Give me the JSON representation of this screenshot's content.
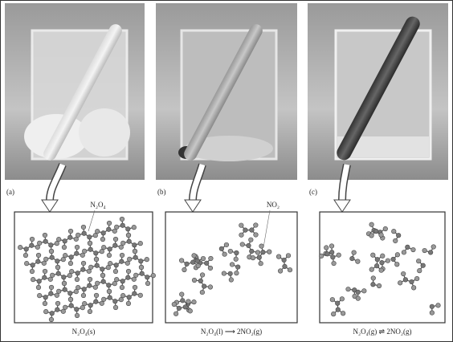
{
  "panels": [
    {
      "label": "(a)",
      "molecule_label": "N₂O₄",
      "equation": "N₂O₄(s)"
    },
    {
      "label": "(b)",
      "molecule_label": "NO₂",
      "equation": "N₂O₄(l) ⟶ 2NO₂(g)"
    },
    {
      "label": "(c)",
      "equation": "N₂O₄(g) ⇌ 2NO₂(g)"
    }
  ]
}
